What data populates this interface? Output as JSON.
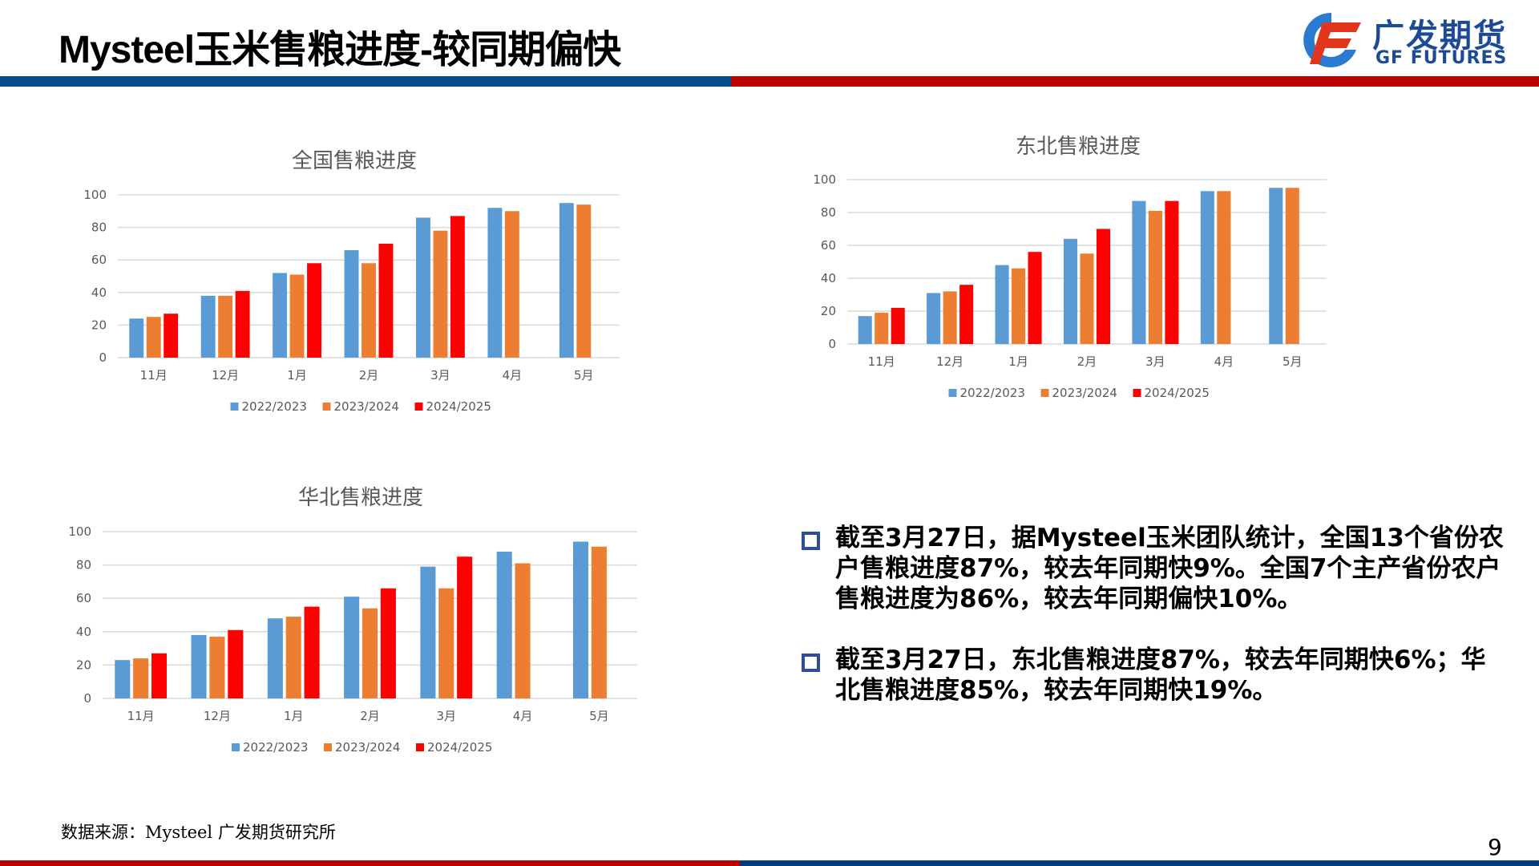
{
  "header": {
    "title": "Mysteel玉米售粮进度-较同期偏快",
    "colors": {
      "blue_bar": "#044A91",
      "red_bar": "#C00000"
    }
  },
  "logo": {
    "cn": "广发期货",
    "en": "GF FUTURES",
    "colors": {
      "text": "#1B4A97",
      "mark_blue": "#2A7BD0",
      "mark_red": "#E2361C"
    }
  },
  "charts": {
    "national": {
      "title": "全国售粮进度"
    },
    "northeast": {
      "title": "东北售粮进度"
    },
    "north_china": {
      "title": "华北售粮进度"
    }
  },
  "chart_data": [
    {
      "id": "national",
      "type": "bar",
      "title": "全国售粮进度",
      "categories": [
        "11月",
        "12月",
        "1月",
        "2月",
        "3月",
        "4月",
        "5月"
      ],
      "series": [
        {
          "name": "2022/2023",
          "color": "#5B9BD5",
          "values": [
            24,
            38,
            52,
            66,
            86,
            92,
            95
          ]
        },
        {
          "name": "2023/2024",
          "color": "#ED7D31",
          "values": [
            25,
            38,
            51,
            58,
            78,
            90,
            94
          ]
        },
        {
          "name": "2024/2025",
          "color": "#FF0000",
          "values": [
            27,
            41,
            58,
            70,
            87,
            null,
            null
          ]
        }
      ],
      "xlabel": "",
      "ylabel": "",
      "ylim": [
        0,
        100
      ],
      "yticks": [
        0,
        20,
        40,
        60,
        80,
        100
      ],
      "grid": true,
      "legend_position": "bottom"
    },
    {
      "id": "northeast",
      "type": "bar",
      "title": "东北售粮进度",
      "categories": [
        "11月",
        "12月",
        "1月",
        "2月",
        "3月",
        "4月",
        "5月"
      ],
      "series": [
        {
          "name": "2022/2023",
          "color": "#5B9BD5",
          "values": [
            17,
            31,
            48,
            64,
            87,
            93,
            95
          ]
        },
        {
          "name": "2023/2024",
          "color": "#ED7D31",
          "values": [
            19,
            32,
            46,
            55,
            81,
            93,
            95
          ]
        },
        {
          "name": "2024/2025",
          "color": "#FF0000",
          "values": [
            22,
            36,
            56,
            70,
            87,
            null,
            null
          ]
        }
      ],
      "xlabel": "",
      "ylabel": "",
      "ylim": [
        0,
        100
      ],
      "yticks": [
        0,
        20,
        40,
        60,
        80,
        100
      ],
      "grid": true,
      "legend_position": "bottom"
    },
    {
      "id": "north_china",
      "type": "bar",
      "title": "华北售粮进度",
      "categories": [
        "11月",
        "12月",
        "1月",
        "2月",
        "3月",
        "4月",
        "5月"
      ],
      "series": [
        {
          "name": "2022/2023",
          "color": "#5B9BD5",
          "values": [
            23,
            38,
            48,
            61,
            79,
            88,
            94
          ]
        },
        {
          "name": "2023/2024",
          "color": "#ED7D31",
          "values": [
            24,
            37,
            49,
            54,
            66,
            81,
            91
          ]
        },
        {
          "name": "2024/2025",
          "color": "#FF0000",
          "values": [
            27,
            41,
            55,
            66,
            85,
            null,
            null
          ]
        }
      ],
      "xlabel": "",
      "ylabel": "",
      "ylim": [
        0,
        100
      ],
      "yticks": [
        0,
        20,
        40,
        60,
        80,
        100
      ],
      "grid": true,
      "legend_position": "bottom"
    }
  ],
  "summary": {
    "bullets": [
      {
        "text": "截至3月27日，据Mysteel玉米团队统计，全国13个省份农户售粮进度87%，较去年同期快9%。全国7个主产省份农户售粮进度为86%，较去年同期偏快10%。"
      },
      {
        "text": "截至3月27日，东北售粮进度87%，较去年同期快6%；华北售粮进度85%，较去年同期快19%。"
      }
    ],
    "bullet_color": "#2E4E9A"
  },
  "footer": {
    "source": "数据来源：Mysteel 广发期货研究所",
    "page_number": "9",
    "colors": {
      "red_bar": "#C00000",
      "blue_bar": "#003A80"
    }
  }
}
